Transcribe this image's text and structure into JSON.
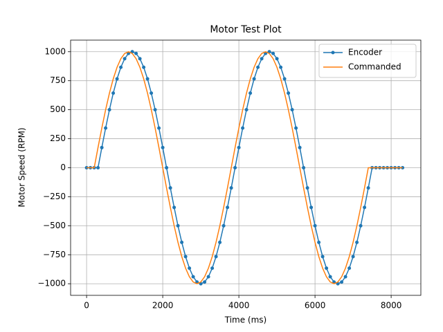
{
  "chart_data": {
    "type": "line",
    "title": "Motor Test Plot",
    "x_label": "Time (ms)",
    "y_label": "Motor Speed (RPM)",
    "x": [
      0,
      100,
      200,
      300,
      400,
      500,
      600,
      700,
      800,
      900,
      1000,
      1100,
      1200,
      1300,
      1400,
      1500,
      1600,
      1700,
      1800,
      1900,
      2000,
      2100,
      2200,
      2300,
      2400,
      2500,
      2600,
      2700,
      2800,
      2900,
      3000,
      3100,
      3200,
      3300,
      3400,
      3500,
      3600,
      3700,
      3800,
      3900,
      4000,
      4100,
      4200,
      4300,
      4400,
      4500,
      4600,
      4700,
      4800,
      4900,
      5000,
      5100,
      5200,
      5300,
      5400,
      5500,
      5600,
      5700,
      5800,
      5900,
      6000,
      6100,
      6200,
      6300,
      6400,
      6500,
      6600,
      6700,
      6800,
      6900,
      7000,
      7100,
      7200,
      7300,
      7400,
      7500,
      7600,
      7700,
      7800,
      7900,
      8000,
      8100,
      8200,
      8300
    ],
    "series": [
      {
        "name": "Encoder",
        "color": "#1f77b4",
        "marker": true,
        "values": [
          0,
          0,
          0,
          0,
          174,
          342,
          500,
          643,
          766,
          866,
          940,
          985,
          1000,
          985,
          940,
          866,
          766,
          643,
          500,
          342,
          174,
          0,
          -174,
          -342,
          -500,
          -643,
          -766,
          -866,
          -940,
          -985,
          -1000,
          -985,
          -940,
          -866,
          -766,
          -643,
          -500,
          -342,
          -174,
          0,
          174,
          342,
          500,
          643,
          766,
          866,
          940,
          985,
          1000,
          985,
          940,
          866,
          766,
          643,
          500,
          342,
          174,
          0,
          -174,
          -342,
          -500,
          -643,
          -766,
          -866,
          -940,
          -985,
          -1000,
          -985,
          -940,
          -866,
          -766,
          -643,
          -500,
          -342,
          -174,
          0,
          0,
          0,
          0,
          0,
          0,
          0,
          0,
          0
        ]
      },
      {
        "name": "Commanded",
        "color": "#ff7f0e",
        "marker": false,
        "values": [
          0,
          0,
          0,
          174,
          342,
          500,
          643,
          766,
          866,
          940,
          985,
          1000,
          985,
          940,
          866,
          766,
          643,
          500,
          342,
          174,
          0,
          -174,
          -342,
          -500,
          -643,
          -766,
          -866,
          -940,
          -985,
          -1000,
          -985,
          -940,
          -866,
          -766,
          -643,
          -500,
          -342,
          -174,
          0,
          174,
          342,
          500,
          643,
          766,
          866,
          940,
          985,
          1000,
          985,
          940,
          866,
          766,
          643,
          500,
          342,
          174,
          0,
          -174,
          -342,
          -500,
          -643,
          -766,
          -866,
          -940,
          -985,
          -1000,
          -985,
          -940,
          -866,
          -766,
          -643,
          -500,
          -342,
          -174,
          0,
          0,
          0,
          0,
          0,
          0,
          0,
          0,
          0,
          0
        ]
      }
    ],
    "xlim": [
      -420,
      8780
    ],
    "ylim": [
      -1100,
      1100
    ],
    "xticks": [
      0,
      2000,
      4000,
      6000,
      8000
    ],
    "yticks": [
      {
        "value": -1000,
        "label": "−1000"
      },
      {
        "value": -750,
        "label": "−750"
      },
      {
        "value": -500,
        "label": "−500"
      },
      {
        "value": -250,
        "label": "−250"
      },
      0,
      250,
      500,
      750,
      1000
    ],
    "grid": true,
    "legend": "upper right"
  }
}
